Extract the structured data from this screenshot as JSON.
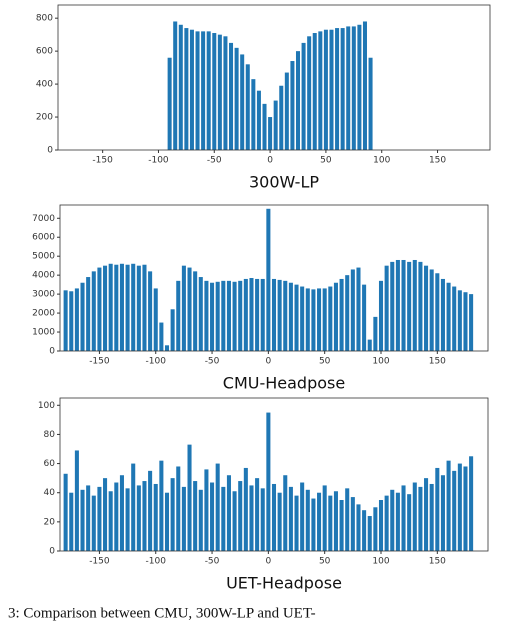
{
  "chart_data": [
    {
      "type": "bar",
      "title": "300W-LP",
      "color": "#1f77b4",
      "x": [
        -90,
        -85,
        -80,
        -75,
        -70,
        -65,
        -60,
        -55,
        -50,
        -45,
        -40,
        -35,
        -30,
        -25,
        -20,
        -15,
        -10,
        -5,
        0,
        5,
        10,
        15,
        20,
        25,
        30,
        35,
        40,
        45,
        50,
        55,
        60,
        65,
        70,
        75,
        80,
        85,
        90
      ],
      "values": [
        560,
        780,
        760,
        740,
        730,
        720,
        720,
        720,
        710,
        700,
        690,
        650,
        620,
        580,
        520,
        430,
        360,
        280,
        200,
        300,
        390,
        470,
        540,
        600,
        650,
        690,
        710,
        720,
        730,
        730,
        740,
        740,
        750,
        750,
        760,
        780,
        560
      ],
      "xlim": [
        -190,
        197
      ],
      "xticks": [
        -150,
        -100,
        -50,
        0,
        50,
        100,
        150
      ],
      "ylim": [
        0,
        880
      ],
      "yticks": [
        0,
        200,
        400,
        600,
        800
      ]
    },
    {
      "type": "bar",
      "title": "CMU-Headpose",
      "color": "#1f77b4",
      "x": [
        -180,
        -175,
        -170,
        -165,
        -160,
        -155,
        -150,
        -145,
        -140,
        -135,
        -130,
        -125,
        -120,
        -115,
        -110,
        -105,
        -100,
        -95,
        -90,
        -85,
        -80,
        -75,
        -70,
        -65,
        -60,
        -55,
        -50,
        -45,
        -40,
        -35,
        -30,
        -25,
        -20,
        -15,
        -10,
        -5,
        0,
        5,
        10,
        15,
        20,
        25,
        30,
        35,
        40,
        45,
        50,
        55,
        60,
        65,
        70,
        75,
        80,
        85,
        90,
        95,
        100,
        105,
        110,
        115,
        120,
        125,
        130,
        135,
        140,
        145,
        150,
        155,
        160,
        165,
        170,
        175,
        180
      ],
      "values": [
        3200,
        3150,
        3300,
        3600,
        3900,
        4200,
        4400,
        4500,
        4600,
        4550,
        4600,
        4550,
        4600,
        4500,
        4550,
        4200,
        3300,
        1500,
        300,
        2200,
        3700,
        4500,
        4400,
        4200,
        3900,
        3700,
        3600,
        3650,
        3700,
        3700,
        3650,
        3700,
        3800,
        3850,
        3800,
        3800,
        7500,
        3800,
        3750,
        3700,
        3600,
        3500,
        3400,
        3300,
        3250,
        3300,
        3300,
        3400,
        3600,
        3800,
        4000,
        4300,
        4400,
        3500,
        600,
        1800,
        3700,
        4500,
        4700,
        4800,
        4800,
        4700,
        4800,
        4700,
        4500,
        4300,
        4100,
        3800,
        3600,
        3400,
        3200,
        3100,
        3000
      ],
      "xlim": [
        -185,
        195
      ],
      "xticks": [
        -150,
        -100,
        -50,
        0,
        50,
        100,
        150
      ],
      "ylim": [
        0,
        7700
      ],
      "yticks": [
        0,
        1000,
        2000,
        3000,
        4000,
        5000,
        6000,
        7000
      ]
    },
    {
      "type": "bar",
      "title": "UET-Headpose",
      "color": "#1f77b4",
      "x": [
        -180,
        -175,
        -170,
        -165,
        -160,
        -155,
        -150,
        -145,
        -140,
        -135,
        -130,
        -125,
        -120,
        -115,
        -110,
        -105,
        -100,
        -95,
        -90,
        -85,
        -80,
        -75,
        -70,
        -65,
        -60,
        -55,
        -50,
        -45,
        -40,
        -35,
        -30,
        -25,
        -20,
        -15,
        -10,
        -5,
        0,
        5,
        10,
        15,
        20,
        25,
        30,
        35,
        40,
        45,
        50,
        55,
        60,
        65,
        70,
        75,
        80,
        85,
        90,
        95,
        100,
        105,
        110,
        115,
        120,
        125,
        130,
        135,
        140,
        145,
        150,
        155,
        160,
        165,
        170,
        175,
        180
      ],
      "values": [
        53,
        40,
        69,
        42,
        45,
        38,
        44,
        50,
        41,
        47,
        52,
        43,
        60,
        45,
        48,
        55,
        46,
        62,
        40,
        50,
        58,
        44,
        73,
        48,
        42,
        56,
        47,
        60,
        44,
        52,
        41,
        48,
        57,
        45,
        50,
        43,
        95,
        46,
        40,
        52,
        44,
        38,
        47,
        42,
        36,
        40,
        45,
        38,
        41,
        35,
        43,
        37,
        32,
        28,
        24,
        30,
        35,
        38,
        42,
        40,
        45,
        39,
        47,
        44,
        50,
        46,
        57,
        52,
        62,
        55,
        60,
        58,
        65
      ],
      "xlim": [
        -185,
        195
      ],
      "xticks": [
        -150,
        -100,
        -50,
        0,
        50,
        100,
        150
      ],
      "ylim": [
        0,
        105
      ],
      "yticks": [
        0,
        20,
        40,
        60,
        80,
        100
      ]
    }
  ],
  "caption": "3: Comparison between CMU, 300W-LP and UET-"
}
